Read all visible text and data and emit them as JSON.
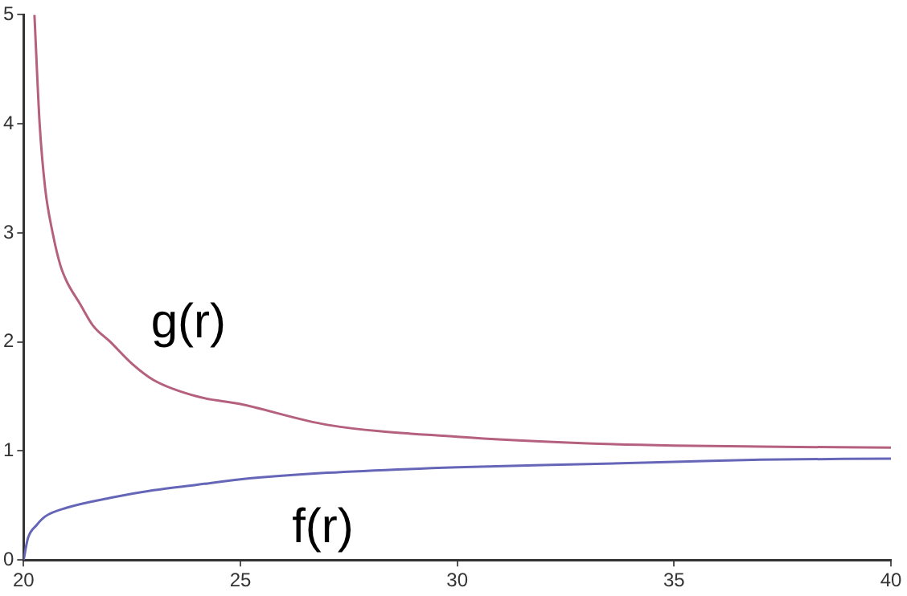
{
  "chart_data": {
    "type": "line",
    "xlim": [
      20,
      40
    ],
    "xticks": [
      20,
      25,
      30,
      35,
      40
    ],
    "ylim": [
      0,
      5
    ],
    "yticks": [
      0,
      1,
      2,
      3,
      4,
      5
    ],
    "grid": false,
    "legend": false,
    "marker": "none",
    "line_style": "solid",
    "series": [
      {
        "name": "g(r)",
        "color": "#b5607f",
        "x": [
          20.25,
          20.37,
          20.5,
          20.67,
          20.85,
          21.0,
          21.3,
          21.6,
          22.0,
          22.5,
          23,
          24,
          25,
          27,
          30,
          33,
          35,
          37,
          40
        ],
        "values": [
          5,
          4,
          3.4,
          3,
          2.7,
          2.55,
          2.35,
          2.15,
          2.0,
          1.8,
          1.65,
          1.5,
          1.43,
          1.24,
          1.13,
          1.07,
          1.05,
          1.04,
          1.03
        ]
      },
      {
        "name": "f(r)",
        "color": "#6666b8",
        "x": [
          20,
          20.1,
          20.3,
          20.5,
          21,
          22,
          23,
          24,
          25,
          27,
          30,
          33,
          35,
          37,
          40
        ],
        "values": [
          0,
          0.2,
          0.32,
          0.4,
          0.48,
          0.57,
          0.64,
          0.69,
          0.74,
          0.8,
          0.85,
          0.88,
          0.9,
          0.92,
          0.93
        ]
      }
    ]
  }
}
